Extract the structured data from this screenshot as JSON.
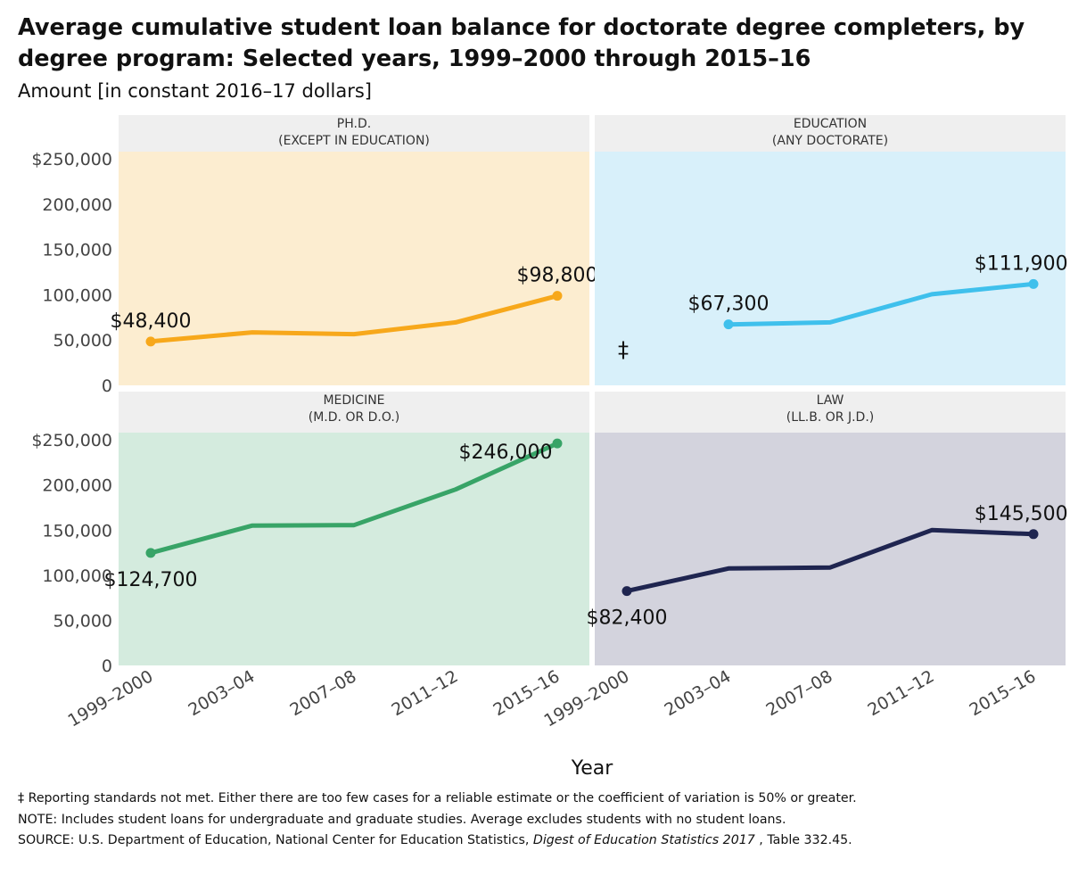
{
  "title": "Average cumulative student loan balance for doctorate degree completers, by degree program: Selected years, 1999–2000 through 2015–16",
  "subtitle": "Amount [in constant 2016–17 dollars]",
  "footnotes": {
    "reporting": "‡ Reporting standards not met. Either there are too few cases for a reliable estimate or the coefficient of variation is 50% or greater.",
    "note": "NOTE: Includes student loans for undergraduate and graduate studies. Average excludes students with no student loans.",
    "source_prefix": "SOURCE: U.S. Department of Education, National Center for Education Statistics, ",
    "source_title": "Digest of Education Statistics 2017",
    "source_suffix": " , Table 332.45."
  },
  "chart_data": {
    "type": "line",
    "xlabel": "Year",
    "categories": [
      "1999–2000",
      "2003–04",
      "2007–08",
      "2011–12",
      "2015–16"
    ],
    "y_ticks": [
      0,
      50000,
      100000,
      150000,
      200000,
      250000
    ],
    "y_tick_labels": [
      "0",
      "50,000",
      "100,000",
      "150,000",
      "200,000",
      "$250,000"
    ],
    "ylim": [
      0,
      258000
    ],
    "panels": [
      {
        "title_line1": "PH.D.",
        "title_line2": "(EXCEPT IN EDUCATION)",
        "background": "#fcedd0",
        "color": "#f7a81b",
        "values": [
          48400,
          58500,
          56500,
          69500,
          98800
        ],
        "start_label": "$48,400",
        "end_label": "$98,800",
        "start_label_pos": "above",
        "end_label_pos": "above",
        "note_symbol": ""
      },
      {
        "title_line1": "EDUCATION",
        "title_line2": "(ANY DOCTORATE)",
        "background": "#d8f0fa",
        "color": "#3fc0ec",
        "values": [
          null,
          67300,
          69500,
          100500,
          111900
        ],
        "start_label": "$67,300",
        "end_label": "$111,900",
        "start_label_pos": "above",
        "end_label_pos": "above",
        "note_symbol": "‡"
      },
      {
        "title_line1": "MEDICINE",
        "title_line2": "(M.D. OR D.O.)",
        "background": "#d4ebde",
        "color": "#38a467",
        "values": [
          124700,
          155000,
          155500,
          195000,
          246000
        ],
        "start_label": "$124,700",
        "end_label": "$246,000",
        "start_label_pos": "below",
        "end_label_pos": "left",
        "note_symbol": ""
      },
      {
        "title_line1": "LAW",
        "title_line2": "(LL.B. OR J.D.)",
        "background": "#d3d3dd",
        "color": "#1f2550",
        "values": [
          82400,
          107500,
          108500,
          150000,
          145500
        ],
        "start_label": "$82,400",
        "end_label": "$145,500",
        "start_label_pos": "below",
        "end_label_pos": "above",
        "note_symbol": ""
      }
    ]
  }
}
